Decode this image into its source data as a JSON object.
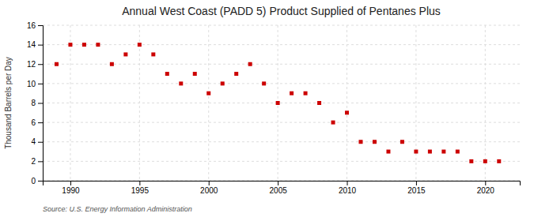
{
  "chart_data": {
    "type": "scatter",
    "title": "Annual West Coast (PADD 5) Product Supplied of Pentanes Plus",
    "ylabel": "Thousand Barrels per Day",
    "source": "Source: U.S. Energy Information Administration",
    "x": [
      1989,
      1990,
      1991,
      1992,
      1993,
      1994,
      1995,
      1996,
      1997,
      1998,
      1999,
      2000,
      2001,
      2002,
      2003,
      2004,
      2005,
      2006,
      2007,
      2008,
      2009,
      2010,
      2011,
      2012,
      2013,
      2014,
      2015,
      2016,
      2017,
      2018,
      2019,
      2020,
      2021
    ],
    "values": [
      12,
      14,
      14,
      14,
      12,
      13,
      14,
      13,
      11,
      10,
      11,
      9,
      10,
      11,
      12,
      10,
      8,
      9,
      9,
      8,
      6,
      7,
      4,
      4,
      3,
      4,
      3,
      3,
      3,
      3,
      2,
      2,
      2
    ],
    "color": "#cc0000",
    "marker": "square",
    "xlim": [
      1988.0,
      2022.5
    ],
    "xticks": [
      1990,
      1995,
      2000,
      2005,
      2010,
      2015,
      2020
    ],
    "ylim": [
      0,
      16
    ],
    "yticks": [
      0,
      2,
      4,
      6,
      8,
      10,
      12,
      14,
      16
    ],
    "grid": true
  }
}
